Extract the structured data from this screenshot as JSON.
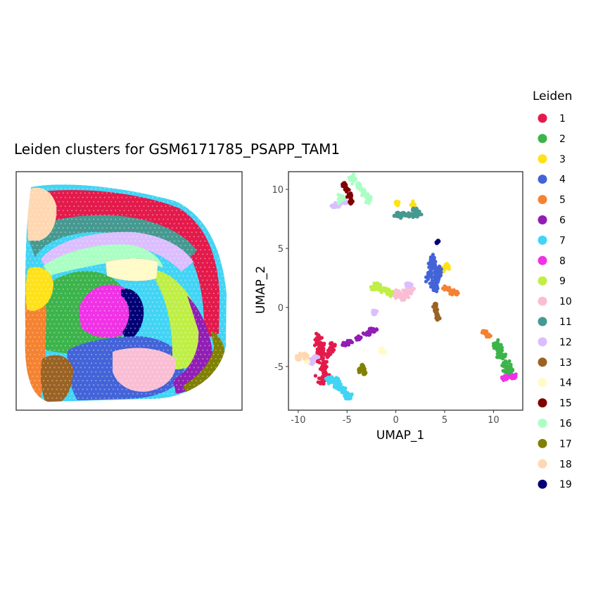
{
  "title": "Leiden clusters for GSM6171785_PSAPP_TAM1",
  "legend": {
    "title": "Leiden",
    "placement": "right",
    "items": [
      {
        "label": "1",
        "color": "#E31A4B"
      },
      {
        "label": "2",
        "color": "#3CB44B"
      },
      {
        "label": "3",
        "color": "#FFE119"
      },
      {
        "label": "4",
        "color": "#4363D8"
      },
      {
        "label": "5",
        "color": "#F58231"
      },
      {
        "label": "6",
        "color": "#911EB4"
      },
      {
        "label": "7",
        "color": "#42D4F4"
      },
      {
        "label": "8",
        "color": "#F032E6"
      },
      {
        "label": "9",
        "color": "#BFEF45"
      },
      {
        "label": "10",
        "color": "#FABED4"
      },
      {
        "label": "11",
        "color": "#469990"
      },
      {
        "label": "12",
        "color": "#DCBEFF"
      },
      {
        "label": "13",
        "color": "#9A6324"
      },
      {
        "label": "14",
        "color": "#FFFAC8"
      },
      {
        "label": "15",
        "color": "#800000"
      },
      {
        "label": "16",
        "color": "#AAFFC3"
      },
      {
        "label": "17",
        "color": "#808000"
      },
      {
        "label": "18",
        "color": "#FFD8B1"
      },
      {
        "label": "19",
        "color": "#000075"
      }
    ]
  },
  "chart_data": [
    {
      "type": "scatter",
      "name": "spatial",
      "grid": false,
      "axes": "none",
      "regions": [
        {
          "cluster": "7",
          "shape": "outer-rim"
        },
        {
          "cluster": "1",
          "shape": "cortex-band"
        },
        {
          "cluster": "11",
          "shape": "inner-cortex-band"
        },
        {
          "cluster": "12",
          "shape": "corpus-band"
        },
        {
          "cluster": "16",
          "shape": "hippocampus"
        },
        {
          "cluster": "15",
          "shape": "small-patch"
        },
        {
          "cluster": "2",
          "shape": "thalamus-large"
        },
        {
          "cluster": "8",
          "shape": "center-patch"
        },
        {
          "cluster": "19",
          "shape": "center-edge"
        },
        {
          "cluster": "4",
          "shape": "lower-center"
        },
        {
          "cluster": "9",
          "shape": "right-band"
        },
        {
          "cluster": "14",
          "shape": "small-patch"
        },
        {
          "cluster": "6",
          "shape": "right-lower-band"
        },
        {
          "cluster": "17",
          "shape": "right-edge"
        },
        {
          "cluster": "10",
          "shape": "lower-patch"
        },
        {
          "cluster": "5",
          "shape": "left-lower"
        },
        {
          "cluster": "13",
          "shape": "bottom-left-patch"
        },
        {
          "cluster": "3",
          "shape": "left-patch"
        },
        {
          "cluster": "18",
          "shape": "left-upper"
        }
      ]
    },
    {
      "type": "scatter",
      "name": "umap",
      "xlabel": "UMAP_1",
      "ylabel": "UMAP_2",
      "xlim": [
        -11,
        13
      ],
      "ylim": [
        -8.7,
        11.5
      ],
      "xticks": [
        -10,
        -5,
        0,
        5,
        10
      ],
      "yticks": [
        -5,
        0,
        5,
        10
      ],
      "grid": false,
      "clusters": [
        {
          "cluster": "1",
          "points": [
            [
              -7.6,
              -3.4
            ],
            [
              -7.8,
              -4.2
            ],
            [
              -7.4,
              -5.0
            ],
            [
              -7.2,
              -5.8
            ],
            [
              -7.9,
              -2.8
            ],
            [
              -7.1,
              -3.9
            ],
            [
              -6.5,
              -3.3
            ],
            [
              -7.5,
              -6.1
            ]
          ],
          "spread": [
            0.35,
            0.45
          ]
        },
        {
          "cluster": "2",
          "points": [
            [
              10.3,
              -3.1
            ],
            [
              10.8,
              -4.1
            ],
            [
              11.2,
              -4.8
            ],
            [
              11.6,
              -5.4
            ],
            [
              10.6,
              -3.6
            ]
          ],
          "spread": [
            0.35,
            0.25
          ]
        },
        {
          "cluster": "3",
          "points": [
            [
              4.8,
              3.2
            ],
            [
              5.2,
              3.5
            ],
            [
              4.4,
              2.9
            ],
            [
              1.8,
              8.7
            ],
            [
              0.1,
              8.8
            ]
          ],
          "spread": [
            0.2,
            0.15
          ]
        },
        {
          "cluster": "4",
          "points": [
            [
              3.8,
              3.5
            ],
            [
              4.2,
              2.5
            ],
            [
              3.5,
              2.8
            ],
            [
              4.0,
              1.8
            ],
            [
              3.7,
              3.9
            ],
            [
              4.4,
              3.1
            ]
          ],
          "spread": [
            0.3,
            0.4
          ]
        },
        {
          "cluster": "5",
          "points": [
            [
              5.1,
              1.6
            ],
            [
              5.7,
              1.3
            ],
            [
              6.2,
              1.2
            ],
            [
              9.1,
              -2.1
            ],
            [
              9.5,
              -2.4
            ]
          ],
          "spread": [
            0.2,
            0.15
          ]
        },
        {
          "cluster": "6",
          "points": [
            [
              -4.8,
              -2.9
            ],
            [
              -3.8,
              -2.6
            ],
            [
              -2.9,
              -2.2
            ],
            [
              -2.3,
              -1.9
            ],
            [
              -5.3,
              -3.1
            ]
          ],
          "spread": [
            0.25,
            0.15
          ]
        },
        {
          "cluster": "7",
          "points": [
            [
              -6.2,
              -6.3
            ],
            [
              -5.5,
              -7.0
            ],
            [
              -4.9,
              -7.5
            ],
            [
              -6.8,
              -6.1
            ],
            [
              -5.9,
              -6.8
            ]
          ],
          "spread": [
            0.3,
            0.25
          ]
        },
        {
          "cluster": "8",
          "points": [
            [
              11.4,
              -5.9
            ],
            [
              11.9,
              -5.9
            ],
            [
              12.1,
              -5.8
            ],
            [
              11.1,
              -6.0
            ]
          ],
          "spread": [
            0.2,
            0.12
          ]
        },
        {
          "cluster": "9",
          "points": [
            [
              -2.2,
              1.7
            ],
            [
              -1.5,
              1.5
            ],
            [
              -0.8,
              1.4
            ],
            [
              -1.9,
              1.9
            ],
            [
              -0.3,
              1.2
            ]
          ],
          "spread": [
            0.3,
            0.15
          ]
        },
        {
          "cluster": "10",
          "points": [
            [
              0.5,
              1.0
            ],
            [
              1.1,
              1.3
            ],
            [
              0.1,
              1.2
            ],
            [
              1.5,
              1.6
            ],
            [
              0.8,
              0.9
            ]
          ],
          "spread": [
            0.3,
            0.2
          ]
        },
        {
          "cluster": "11",
          "points": [
            [
              0.6,
              7.9
            ],
            [
              1.5,
              7.8
            ],
            [
              2.2,
              7.9
            ],
            [
              1.9,
              8.3
            ],
            [
              0.3,
              7.8
            ]
          ],
          "spread": [
            0.3,
            0.15
          ]
        },
        {
          "cluster": "12",
          "points": [
            [
              -6.3,
              8.6
            ],
            [
              -5.8,
              8.7
            ],
            [
              -5.2,
              8.9
            ],
            [
              -8.2,
              -4.2
            ],
            [
              -8.6,
              -4.6
            ],
            [
              -2.2,
              -0.4
            ],
            [
              1.4,
              1.9
            ]
          ],
          "spread": [
            0.2,
            0.15
          ]
        },
        {
          "cluster": "13",
          "points": [
            [
              4.1,
              -0.3
            ],
            [
              4.2,
              -0.6
            ],
            [
              4.0,
              0.2
            ],
            [
              4.3,
              -0.9
            ]
          ],
          "spread": [
            0.12,
            0.15
          ]
        },
        {
          "cluster": "14",
          "points": [
            [
              -1.5,
              -3.6
            ],
            [
              -1.3,
              -3.8
            ],
            [
              -9.1,
              -4.6
            ]
          ],
          "spread": [
            0.12,
            0.12
          ]
        },
        {
          "cluster": "15",
          "points": [
            [
              -5.3,
              10.4
            ],
            [
              -5.0,
              10.0
            ],
            [
              -4.7,
              9.5
            ],
            [
              -4.6,
              9.0
            ]
          ],
          "spread": [
            0.15,
            0.15
          ]
        },
        {
          "cluster": "16",
          "points": [
            [
              -4.4,
              10.9
            ],
            [
              -3.8,
              10.3
            ],
            [
              -3.3,
              9.8
            ],
            [
              -2.8,
              9.3
            ],
            [
              -5.6,
              9.2
            ]
          ],
          "spread": [
            0.25,
            0.3
          ]
        },
        {
          "cluster": "17",
          "points": [
            [
              -3.4,
              -5.0
            ],
            [
              -3.2,
              -5.5
            ],
            [
              -3.7,
              -5.3
            ]
          ],
          "spread": [
            0.12,
            0.15
          ]
        },
        {
          "cluster": "18",
          "points": [
            [
              -9.7,
              -4.0
            ],
            [
              -9.3,
              -4.1
            ],
            [
              -10.0,
              -4.3
            ]
          ],
          "spread": [
            0.2,
            0.15
          ]
        },
        {
          "cluster": "19",
          "points": [
            [
              4.2,
              5.5
            ],
            [
              4.3,
              5.6
            ]
          ],
          "spread": [
            0.07,
            0.07
          ]
        }
      ]
    }
  ]
}
